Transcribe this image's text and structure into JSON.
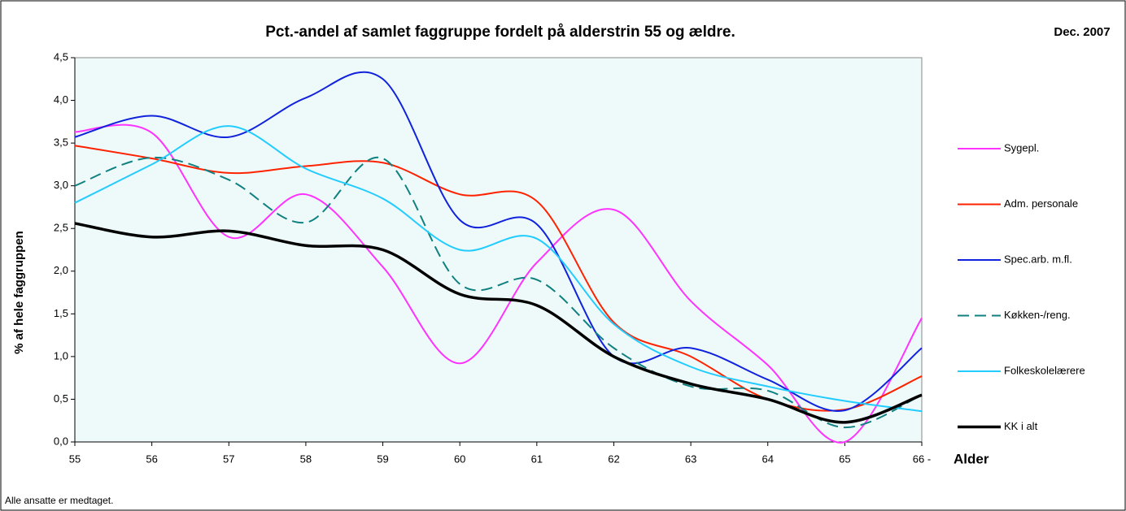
{
  "chart_data": {
    "type": "line",
    "title": "Pct.-andel af samlet faggruppe fordelt på alderstrin 55 og ældre.",
    "subtitle": "Dec. 2007",
    "y_label": "% af hele faggruppen",
    "x_label": "Alder",
    "note": "Alle ansatte er medtaget.",
    "categories": [
      "55",
      "56",
      "57",
      "58",
      "59",
      "60",
      "61",
      "62",
      "63",
      "64",
      "65",
      "66 -"
    ],
    "ylim": [
      0,
      4.5
    ],
    "yticks": [
      {
        "value": 0,
        "label": "0,0"
      },
      {
        "value": 0.5,
        "label": "0,5"
      },
      {
        "value": 1,
        "label": "1,0"
      },
      {
        "value": 1.5,
        "label": "1,5"
      },
      {
        "value": 2,
        "label": "2,0"
      },
      {
        "value": 2.5,
        "label": "2,5"
      },
      {
        "value": 3,
        "label": "3,0"
      },
      {
        "value": 3.5,
        "label": "3,5"
      },
      {
        "value": 4,
        "label": "4,0"
      },
      {
        "value": 4.5,
        "label": "4,5"
      }
    ],
    "series": [
      {
        "name": "Sygepl.",
        "color": "#ff33ff",
        "values": [
          3.63,
          3.62,
          2.4,
          2.9,
          2.05,
          0.92,
          2.1,
          2.72,
          1.65,
          0.9,
          0.0,
          1.45
        ]
      },
      {
        "name": "Adm. personale",
        "color": "#ff2200",
        "values": [
          3.47,
          3.32,
          3.15,
          3.23,
          3.27,
          2.9,
          2.82,
          1.4,
          1.0,
          0.5,
          0.38,
          0.77
        ]
      },
      {
        "name": "Spec.arb. m.fl.",
        "color": "#1122dd",
        "values": [
          3.57,
          3.82,
          3.57,
          4.03,
          4.25,
          2.6,
          2.55,
          1.0,
          1.1,
          0.73,
          0.37,
          1.1
        ]
      },
      {
        "name": "Køkken-/reng.",
        "color": "#118080",
        "dashed": true,
        "values": [
          3.0,
          3.33,
          3.07,
          2.57,
          3.32,
          1.85,
          1.9,
          1.1,
          0.65,
          0.6,
          0.17,
          0.55
        ]
      },
      {
        "name": "Folkeskolelærere",
        "color": "#22ccff",
        "values": [
          2.8,
          3.25,
          3.7,
          3.2,
          2.85,
          2.25,
          2.38,
          1.38,
          0.88,
          0.65,
          0.48,
          0.36
        ]
      },
      {
        "name": "KK i alt",
        "color": "#000000",
        "width": 3.5,
        "values": [
          2.56,
          2.4,
          2.47,
          2.3,
          2.25,
          1.73,
          1.6,
          1.0,
          0.68,
          0.5,
          0.23,
          0.55
        ]
      }
    ]
  }
}
